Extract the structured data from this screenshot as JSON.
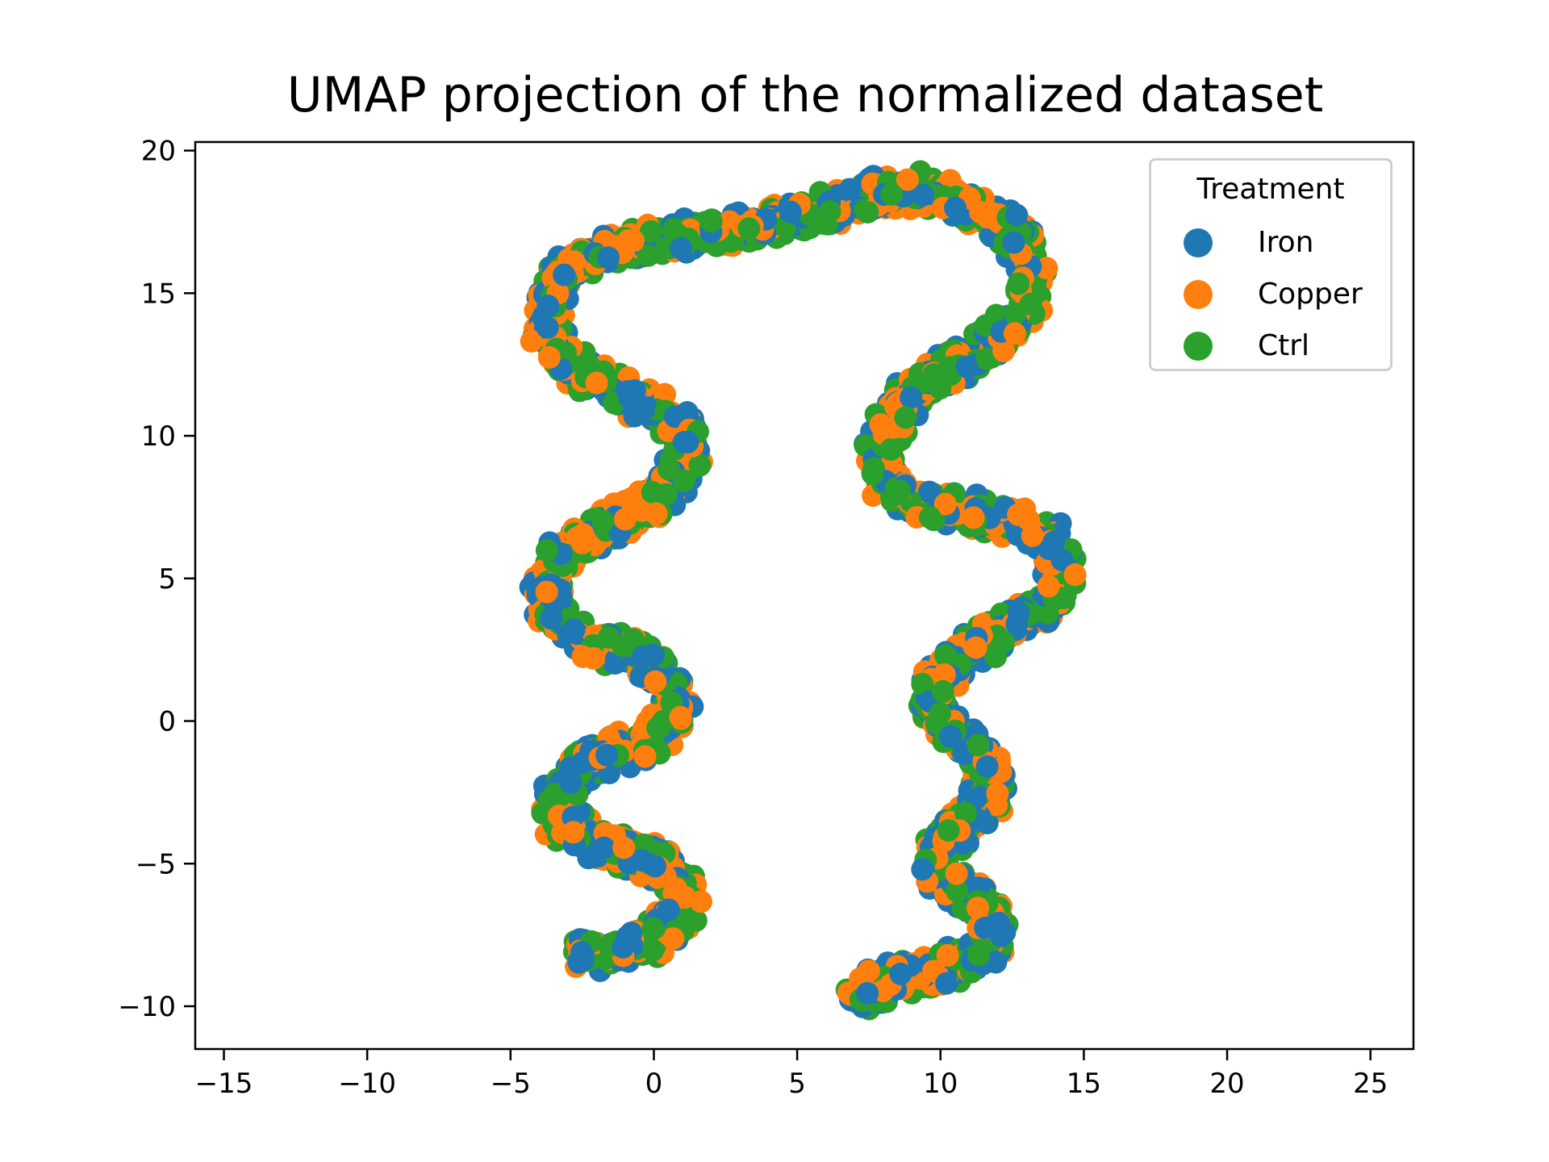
{
  "chart_data": {
    "type": "scatter",
    "title": "UMAP projection of the normalized dataset",
    "xlabel": "",
    "ylabel": "",
    "xlim": [
      -16,
      26.5
    ],
    "ylim": [
      -11.5,
      20.3
    ],
    "x_ticks": [
      -15,
      -10,
      -5,
      0,
      5,
      10,
      15,
      20,
      25
    ],
    "y_ticks": [
      -10,
      -5,
      0,
      5,
      10,
      15,
      20
    ],
    "x_tick_labels": [
      "−15",
      "−10",
      "−5",
      "0",
      "5",
      "10",
      "15",
      "20",
      "25"
    ],
    "y_tick_labels": [
      "−10",
      "−5",
      "0",
      "5",
      "10",
      "15",
      "20"
    ],
    "grid": false,
    "legend": {
      "title": "Treatment",
      "placement": "top-right",
      "entries": [
        {
          "name": "Iron",
          "color": "#1f77b4"
        },
        {
          "name": "Copper",
          "color": "#ff7f0e"
        },
        {
          "name": "Ctrl",
          "color": "#2ca02c"
        }
      ]
    },
    "curve_path": [
      [
        -2.8,
        -8.2
      ],
      [
        -1.5,
        -8.1
      ],
      [
        0.2,
        -7.6
      ],
      [
        1.1,
        -6.5
      ],
      [
        0.7,
        -5.2
      ],
      [
        -0.8,
        -4.6
      ],
      [
        -2.2,
        -4.3
      ],
      [
        -3.4,
        -3.4
      ],
      [
        -3.3,
        -2.3
      ],
      [
        -2.2,
        -1.4
      ],
      [
        -0.3,
        -0.8
      ],
      [
        0.9,
        0.3
      ],
      [
        0.4,
        1.6
      ],
      [
        -1.0,
        2.4
      ],
      [
        -2.8,
        3.0
      ],
      [
        -3.8,
        4.2
      ],
      [
        -3.5,
        5.6
      ],
      [
        -2.3,
        6.5
      ],
      [
        -0.4,
        7.4
      ],
      [
        0.9,
        8.6
      ],
      [
        1.3,
        9.6
      ],
      [
        0.6,
        10.7
      ],
      [
        -0.8,
        11.3
      ],
      [
        -2.5,
        12.1
      ],
      [
        -3.6,
        13.3
      ],
      [
        -3.7,
        14.6
      ],
      [
        -3.2,
        15.8
      ],
      [
        -1.5,
        16.5
      ],
      [
        1.0,
        17.0
      ],
      [
        4.0,
        17.5
      ],
      [
        6.5,
        18.0
      ],
      [
        8.0,
        18.5
      ],
      [
        9.5,
        18.6
      ],
      [
        11.0,
        18.1
      ],
      [
        12.5,
        17.3
      ],
      [
        13.2,
        16.0
      ],
      [
        13.1,
        14.8
      ],
      [
        12.2,
        13.6
      ],
      [
        11.0,
        12.7
      ],
      [
        9.5,
        12.0
      ],
      [
        8.4,
        10.8
      ],
      [
        7.9,
        9.4
      ],
      [
        8.3,
        8.0
      ],
      [
        10.0,
        7.5
      ],
      [
        12.0,
        7.2
      ],
      [
        13.6,
        6.6
      ],
      [
        14.3,
        5.4
      ],
      [
        13.7,
        4.0
      ],
      [
        12.0,
        3.0
      ],
      [
        10.5,
        2.2
      ],
      [
        9.6,
        1.0
      ],
      [
        10.2,
        -0.4
      ],
      [
        11.5,
        -1.3
      ],
      [
        11.8,
        -2.6
      ],
      [
        10.8,
        -3.6
      ],
      [
        9.7,
        -4.7
      ],
      [
        10.2,
        -5.8
      ],
      [
        11.6,
        -6.4
      ],
      [
        11.9,
        -7.6
      ],
      [
        11.2,
        -8.4
      ],
      [
        9.6,
        -8.8
      ],
      [
        8.0,
        -9.2
      ],
      [
        6.9,
        -9.9
      ]
    ],
    "point_count": 3400,
    "band_half_width": 0.7
  }
}
